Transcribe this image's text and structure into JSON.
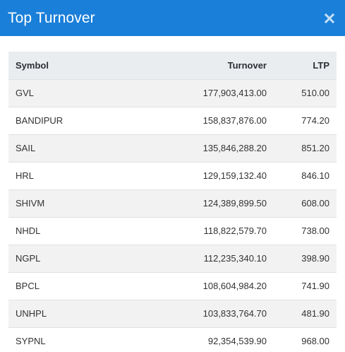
{
  "modal": {
    "title": "Top Turnover",
    "close_icon": "close-icon"
  },
  "table": {
    "headers": {
      "symbol": "Symbol",
      "turnover": "Turnover",
      "ltp": "LTP"
    },
    "rows": [
      {
        "symbol": "GVL",
        "turnover": "177,903,413.00",
        "ltp": "510.00"
      },
      {
        "symbol": "BANDIPUR",
        "turnover": "158,837,876.00",
        "ltp": "774.20"
      },
      {
        "symbol": "SAIL",
        "turnover": "135,846,288.20",
        "ltp": "851.20"
      },
      {
        "symbol": "HRL",
        "turnover": "129,159,132.40",
        "ltp": "846.10"
      },
      {
        "symbol": "SHIVM",
        "turnover": "124,389,899.50",
        "ltp": "608.00"
      },
      {
        "symbol": "NHDL",
        "turnover": "118,822,579.70",
        "ltp": "738.00"
      },
      {
        "symbol": "NGPL",
        "turnover": "112,235,340.10",
        "ltp": "398.90"
      },
      {
        "symbol": "BPCL",
        "turnover": "108,604,984.20",
        "ltp": "741.90"
      },
      {
        "symbol": "UNHPL",
        "turnover": "103,833,764.70",
        "ltp": "481.90"
      },
      {
        "symbol": "SYPNL",
        "turnover": "92,354,539.90",
        "ltp": "968.00"
      }
    ]
  },
  "colors": {
    "header_bg": "#1a7fd9",
    "table_header_bg": "#eaedf0",
    "row_stripe": "#f2f2f2"
  }
}
